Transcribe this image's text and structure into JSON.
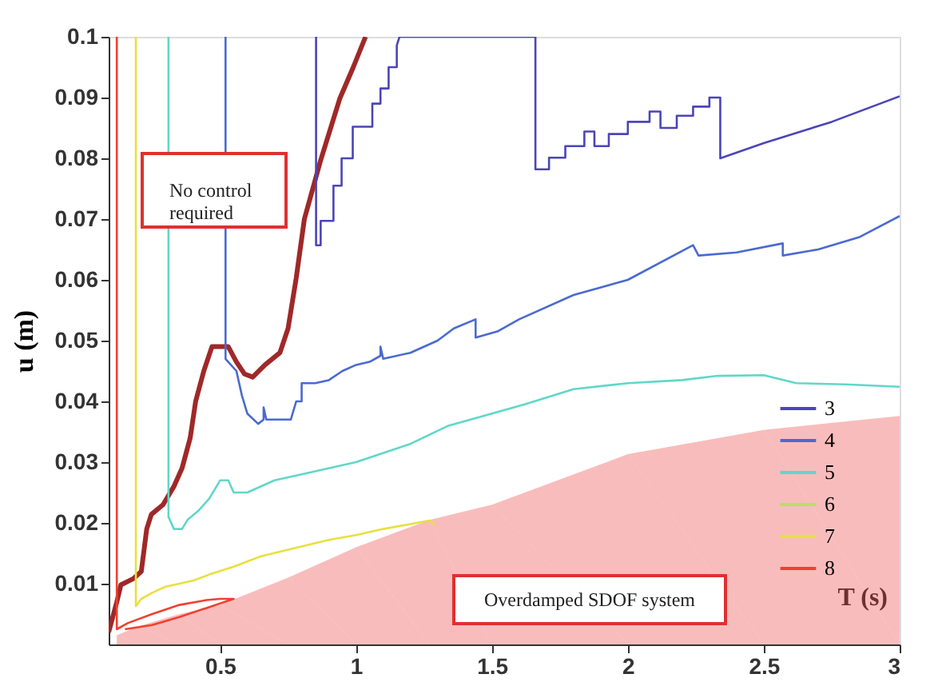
{
  "chart_data": {
    "type": "line",
    "xlabel": "T (s)",
    "ylabel": "u (m)",
    "xlim": [
      0.09,
      3
    ],
    "ylim": [
      0,
      0.1
    ],
    "xticks": [
      0.5,
      1,
      1.5,
      2,
      2.5,
      3
    ],
    "yticks": [
      0.01,
      0.02,
      0.03,
      0.04,
      0.05,
      0.06,
      0.07,
      0.08,
      0.09,
      0.1
    ],
    "grid": false,
    "legend": "bottom right",
    "marker": "none",
    "line_style": "solid",
    "annotations": [
      "No control\nrequired",
      "Overdamped SDOF system"
    ],
    "series": [
      {
        "type": "area",
        "color": "#f26b6b",
        "x": [
          0.12,
          0.2,
          0.35,
          0.5,
          0.75,
          1.0,
          1.27,
          1.5,
          2.0,
          2.5,
          3.0
        ],
        "values": [
          0.0015,
          0.003,
          0.005,
          0.0065,
          0.011,
          0.016,
          0.0205,
          0.023,
          0.0313,
          0.0353,
          0.0376
        ]
      },
      {
        "name": "3",
        "color": "#4b45b8",
        "x": [
          0.853,
          0.853,
          0.87,
          0.87,
          0.917,
          0.917,
          0.947,
          0.947,
          0.988,
          0.988,
          1.06,
          1.06,
          1.09,
          1.09,
          1.12,
          1.12,
          1.15,
          1.15,
          1.16,
          1.66,
          1.66,
          1.71,
          1.71,
          1.77,
          1.77,
          1.84,
          1.84,
          1.877,
          1.877,
          1.93,
          1.93,
          2.0,
          2.0,
          2.08,
          2.08,
          2.12,
          2.12,
          2.18,
          2.18,
          2.24,
          2.24,
          2.3,
          2.3,
          2.34,
          2.34,
          2.5,
          2.75,
          3.0
        ],
        "values": [
          0.1,
          0.0657,
          0.0657,
          0.0697,
          0.0697,
          0.0755,
          0.0755,
          0.08,
          0.08,
          0.0852,
          0.0852,
          0.089,
          0.089,
          0.0915,
          0.0915,
          0.095,
          0.095,
          0.0986,
          0.1,
          0.1,
          0.0782,
          0.0782,
          0.0801,
          0.0801,
          0.082,
          0.082,
          0.0844,
          0.0844,
          0.082,
          0.082,
          0.084,
          0.084,
          0.086,
          0.086,
          0.0877,
          0.0877,
          0.085,
          0.085,
          0.087,
          0.087,
          0.0885,
          0.0885,
          0.09,
          0.09,
          0.08,
          0.0825,
          0.086,
          0.0902
        ]
      },
      {
        "name": "4",
        "color": "#4a6ad0",
        "x": [
          0.52,
          0.52,
          0.56,
          0.58,
          0.6,
          0.64,
          0.66,
          0.66,
          0.67,
          0.76,
          0.78,
          0.8,
          0.8,
          0.85,
          0.9,
          0.95,
          1.0,
          1.05,
          1.09,
          1.09,
          1.1,
          1.2,
          1.3,
          1.36,
          1.44,
          1.44,
          1.52,
          1.6,
          1.8,
          2.0,
          2.24,
          2.26,
          2.4,
          2.57,
          2.57,
          2.7,
          2.85,
          3.0
        ],
        "values": [
          0.1,
          0.047,
          0.045,
          0.041,
          0.038,
          0.0363,
          0.037,
          0.039,
          0.037,
          0.037,
          0.04,
          0.04,
          0.043,
          0.043,
          0.0435,
          0.045,
          0.046,
          0.0465,
          0.0475,
          0.049,
          0.047,
          0.048,
          0.05,
          0.052,
          0.0535,
          0.0505,
          0.0515,
          0.0535,
          0.0575,
          0.06,
          0.0657,
          0.064,
          0.0645,
          0.066,
          0.064,
          0.065,
          0.067,
          0.0705
        ]
      },
      {
        "name": "5",
        "color": "#5fd8c8",
        "x": [
          0.31,
          0.31,
          0.33,
          0.36,
          0.38,
          0.42,
          0.46,
          0.5,
          0.53,
          0.55,
          0.6,
          0.7,
          0.8,
          1.0,
          1.2,
          1.34,
          1.5,
          1.62,
          1.8,
          2.0,
          2.2,
          2.33,
          2.5,
          2.62,
          2.8,
          3.0
        ],
        "values": [
          0.1,
          0.021,
          0.019,
          0.019,
          0.0205,
          0.022,
          0.024,
          0.027,
          0.027,
          0.025,
          0.025,
          0.027,
          0.028,
          0.03,
          0.033,
          0.036,
          0.038,
          0.0395,
          0.042,
          0.043,
          0.0435,
          0.0442,
          0.0443,
          0.043,
          0.0428,
          0.0424
        ]
      },
      {
        "name": "6",
        "color": "#b8e060"
      },
      {
        "name": "7",
        "color": "#e8e040",
        "x": [
          0.19,
          0.19,
          0.21,
          0.25,
          0.3,
          0.4,
          0.46,
          0.55,
          0.65,
          0.75,
          0.9,
          1.0,
          1.1,
          1.2,
          1.27,
          1.29
        ],
        "values": [
          0.1,
          0.0063,
          0.0075,
          0.0085,
          0.0095,
          0.0105,
          0.0115,
          0.0128,
          0.0145,
          0.0156,
          0.0172,
          0.018,
          0.019,
          0.0198,
          0.0204,
          0.0197
        ]
      },
      {
        "name": "8",
        "color": "#f04030",
        "x": [
          0.12,
          0.12,
          0.16,
          0.25,
          0.35,
          0.45,
          0.5,
          0.55,
          0.45,
          0.35,
          0.25,
          0.15
        ],
        "values": [
          0.1,
          0.0025,
          0.0035,
          0.005,
          0.0065,
          0.0073,
          0.0075,
          0.0075,
          0.006,
          0.0045,
          0.0032,
          0.0025
        ]
      },
      {
        "color": "#a02828",
        "x": [
          0.09,
          0.12,
          0.135,
          0.18,
          0.21,
          0.23,
          0.247,
          0.29,
          0.33,
          0.36,
          0.39,
          0.41,
          0.44,
          0.47,
          0.53,
          0.56,
          0.59,
          0.62,
          0.665,
          0.72,
          0.75,
          0.78,
          0.81,
          0.87,
          0.94,
          0.99,
          1.035
        ],
        "values": [
          0.002,
          0.007,
          0.0098,
          0.0108,
          0.012,
          0.019,
          0.0214,
          0.023,
          0.026,
          0.029,
          0.034,
          0.04,
          0.045,
          0.049,
          0.049,
          0.0465,
          0.0445,
          0.044,
          0.046,
          0.048,
          0.052,
          0.0603,
          0.07,
          0.0797,
          0.0898,
          0.095,
          0.1
        ]
      }
    ]
  }
}
